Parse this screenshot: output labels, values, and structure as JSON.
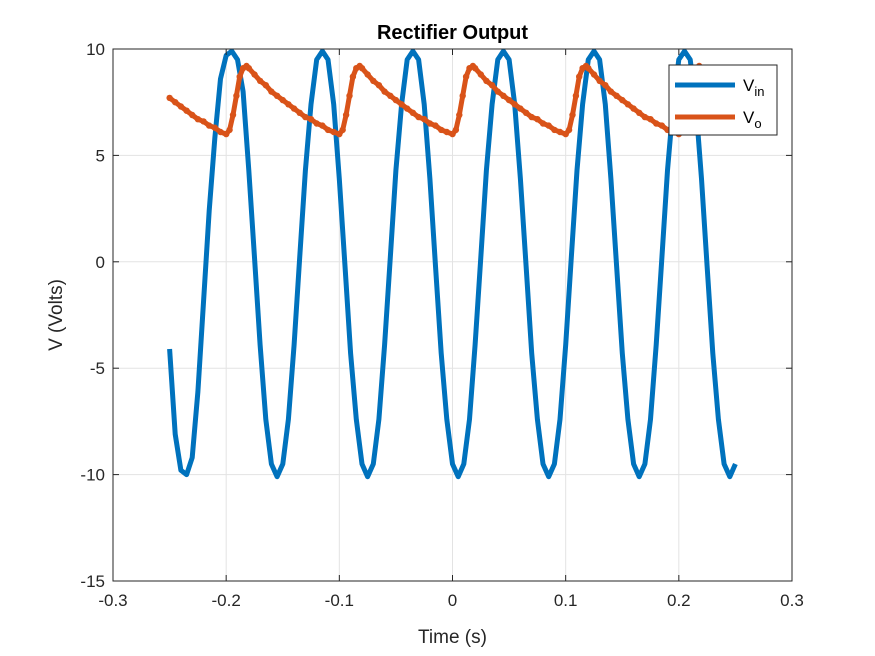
{
  "chart_data": {
    "type": "line",
    "title": "Rectifier Output",
    "xlabel": "Time (s)",
    "ylabel": "V (Volts)",
    "xlim": [
      -0.3,
      0.3
    ],
    "ylim": [
      -15,
      10
    ],
    "xticks": [
      -0.3,
      -0.2,
      -0.1,
      0,
      0.1,
      0.2,
      0.3
    ],
    "xtick_labels": [
      "-0.3",
      "-0.2",
      "-0.1",
      "0",
      "0.1",
      "0.2",
      "0.3"
    ],
    "yticks": [
      -15,
      -10,
      -5,
      0,
      5,
      10
    ],
    "ytick_labels": [
      "-15",
      "-10",
      "-5",
      "0",
      "5",
      "10"
    ],
    "grid": true,
    "legend_position": "top-right",
    "series": [
      {
        "name_main": "V",
        "name_sub": "in",
        "color": "#0072BD",
        "style": "solid-thick",
        "x": [
          -0.25,
          -0.245,
          -0.24,
          -0.235,
          -0.23,
          -0.225,
          -0.22,
          -0.215,
          -0.21,
          -0.205,
          -0.2,
          -0.195,
          -0.19,
          -0.185,
          -0.18,
          -0.175,
          -0.17,
          -0.165,
          -0.16,
          -0.155,
          -0.15,
          -0.145,
          -0.14,
          -0.135,
          -0.13,
          -0.125,
          -0.12,
          -0.115,
          -0.11,
          -0.105,
          -0.1,
          -0.095,
          -0.09,
          -0.085,
          -0.08,
          -0.075,
          -0.07,
          -0.065,
          -0.06,
          -0.055,
          -0.05,
          -0.045,
          -0.04,
          -0.035,
          -0.03,
          -0.025,
          -0.02,
          -0.015,
          -0.01,
          -0.005,
          0.0,
          0.005,
          0.01,
          0.015,
          0.02,
          0.025,
          0.03,
          0.035,
          0.04,
          0.045,
          0.05,
          0.055,
          0.06,
          0.065,
          0.07,
          0.075,
          0.08,
          0.085,
          0.09,
          0.095,
          0.1,
          0.105,
          0.11,
          0.115,
          0.12,
          0.125,
          0.13,
          0.135,
          0.14,
          0.145,
          0.15,
          0.155,
          0.16,
          0.165,
          0.17,
          0.175,
          0.18,
          0.185,
          0.19,
          0.195,
          0.2,
          0.205,
          0.21,
          0.215,
          0.22,
          0.225,
          0.23,
          0.235,
          0.24,
          0.245,
          0.25
        ],
        "y": [
          -4.1,
          -8.1,
          -9.8,
          -10.0,
          -9.2,
          -6.1,
          -1.9,
          2.4,
          5.8,
          8.6,
          9.7,
          9.9,
          9.5,
          8.0,
          4.3,
          0.2,
          -3.9,
          -7.4,
          -9.5,
          -10.1,
          -9.5,
          -7.4,
          -3.9,
          0.2,
          4.3,
          7.4,
          9.5,
          9.9,
          9.5,
          7.4,
          3.9,
          -0.2,
          -4.3,
          -7.4,
          -9.5,
          -10.1,
          -9.5,
          -7.4,
          -3.9,
          0.2,
          4.3,
          7.4,
          9.5,
          9.9,
          9.5,
          7.4,
          3.9,
          -0.2,
          -4.3,
          -7.4,
          -9.5,
          -10.1,
          -9.5,
          -7.4,
          -3.9,
          0.2,
          4.3,
          7.4,
          9.5,
          9.9,
          9.5,
          7.4,
          3.9,
          -0.2,
          -4.3,
          -7.4,
          -9.5,
          -10.1,
          -9.5,
          -7.4,
          -3.9,
          0.2,
          4.3,
          7.4,
          9.5,
          9.9,
          9.5,
          7.4,
          3.9,
          -0.2,
          -4.3,
          -7.4,
          -9.5,
          -10.1,
          -9.5,
          -7.4,
          -3.9,
          0.2,
          4.3,
          7.4,
          9.5,
          9.9,
          9.5,
          7.4,
          3.9,
          -0.2,
          -4.3,
          -7.4,
          -9.5,
          -10.1,
          -9.5
        ]
      },
      {
        "name_main": "V",
        "name_sub": "o",
        "color": "#D95319",
        "style": "solid-thick-markers",
        "x": [
          -0.25,
          -0.245,
          -0.24,
          -0.235,
          -0.23,
          -0.225,
          -0.22,
          -0.215,
          -0.21,
          -0.205,
          -0.2,
          -0.197,
          -0.194,
          -0.191,
          -0.188,
          -0.185,
          -0.182,
          -0.18,
          -0.175,
          -0.17,
          -0.165,
          -0.16,
          -0.155,
          -0.15,
          -0.145,
          -0.14,
          -0.135,
          -0.13,
          -0.125,
          -0.12,
          -0.115,
          -0.11,
          -0.105,
          -0.1,
          -0.097,
          -0.094,
          -0.091,
          -0.088,
          -0.085,
          -0.082,
          -0.08,
          -0.075,
          -0.07,
          -0.065,
          -0.06,
          -0.055,
          -0.05,
          -0.045,
          -0.04,
          -0.035,
          -0.03,
          -0.025,
          -0.02,
          -0.015,
          -0.01,
          -0.005,
          0.0,
          0.003,
          0.006,
          0.009,
          0.012,
          0.015,
          0.018,
          0.02,
          0.025,
          0.03,
          0.035,
          0.04,
          0.045,
          0.05,
          0.055,
          0.06,
          0.065,
          0.07,
          0.075,
          0.08,
          0.085,
          0.09,
          0.095,
          0.1,
          0.103,
          0.106,
          0.109,
          0.112,
          0.115,
          0.118,
          0.12,
          0.125,
          0.13,
          0.135,
          0.14,
          0.145,
          0.15,
          0.155,
          0.16,
          0.165,
          0.17,
          0.175,
          0.18,
          0.185,
          0.19,
          0.195,
          0.2,
          0.203,
          0.206,
          0.209,
          0.212,
          0.215,
          0.218,
          0.22
        ],
        "y": [
          7.7,
          7.5,
          7.3,
          7.1,
          6.9,
          6.7,
          6.6,
          6.4,
          6.3,
          6.1,
          6.0,
          6.2,
          6.9,
          7.8,
          8.7,
          9.1,
          9.2,
          9.1,
          8.8,
          8.5,
          8.3,
          8.0,
          7.8,
          7.6,
          7.4,
          7.2,
          7.0,
          6.8,
          6.7,
          6.5,
          6.4,
          6.2,
          6.1,
          6.0,
          6.2,
          6.9,
          7.8,
          8.7,
          9.1,
          9.2,
          9.1,
          8.8,
          8.5,
          8.3,
          8.0,
          7.8,
          7.6,
          7.4,
          7.2,
          7.0,
          6.8,
          6.7,
          6.5,
          6.4,
          6.2,
          6.1,
          6.0,
          6.2,
          6.9,
          7.8,
          8.7,
          9.1,
          9.2,
          9.1,
          8.8,
          8.5,
          8.3,
          8.0,
          7.8,
          7.6,
          7.4,
          7.2,
          7.0,
          6.8,
          6.7,
          6.5,
          6.4,
          6.2,
          6.1,
          6.0,
          6.2,
          6.9,
          7.8,
          8.7,
          9.1,
          9.2,
          9.1,
          8.8,
          8.5,
          8.3,
          8.0,
          7.8,
          7.6,
          7.4,
          7.2,
          7.0,
          6.8,
          6.7,
          6.5,
          6.4,
          6.2,
          6.1,
          6.0,
          6.2,
          6.9,
          7.8,
          8.7,
          9.1,
          9.2,
          9.1
        ]
      }
    ]
  }
}
